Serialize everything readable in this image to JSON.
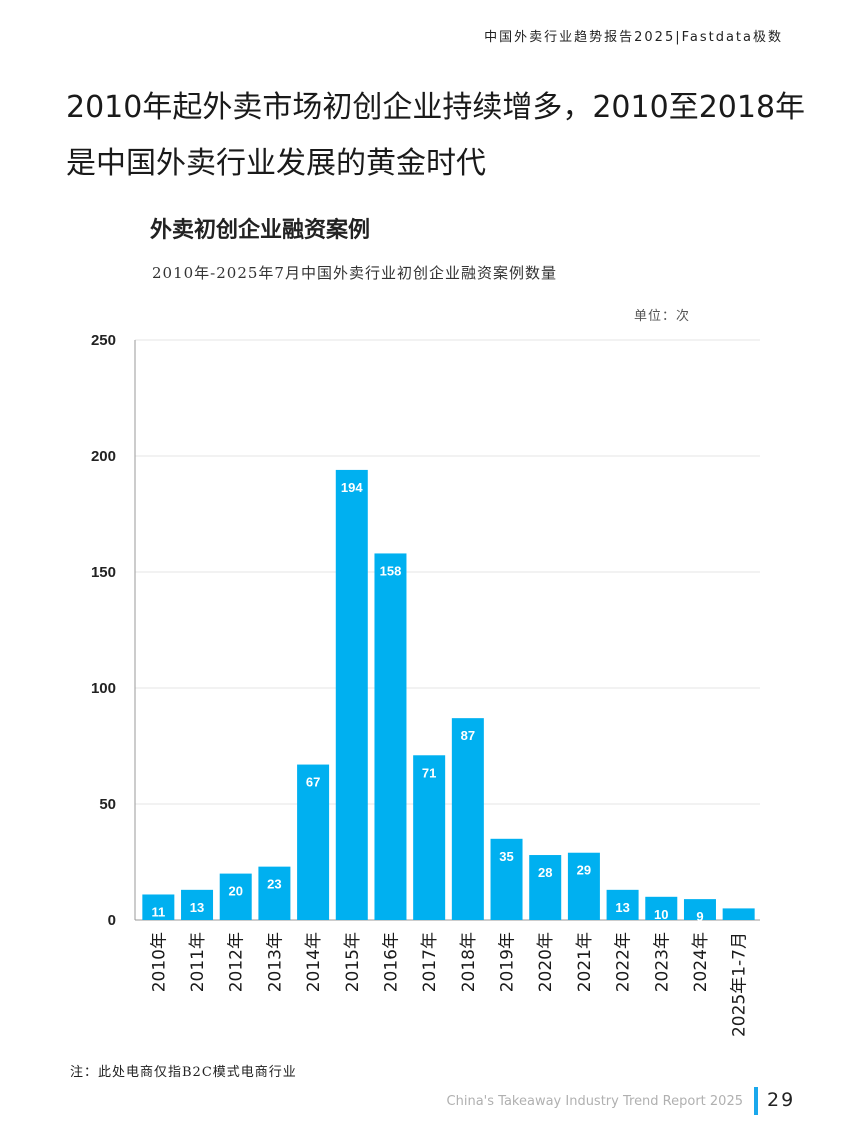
{
  "header": {
    "report_line": "中国外卖行业趋势报告2025|Fastdata极数"
  },
  "page": {
    "title": "2010年起外卖市场初创企业持续增多，2010至2018年是中国外卖行业发展的黄金时代",
    "footnote": "注：此处电商仅指B2C模式电商行业",
    "footer_en": "China's Takeaway Industry Trend Report 2025",
    "page_number": "29"
  },
  "colors": {
    "bar": "#00b0f0",
    "accent": "#1aa8ec",
    "grid": "#e6e6e6"
  },
  "chart_data": {
    "type": "bar",
    "title": "外卖初创企业融资案例",
    "subtitle": "2010年-2025年7月中国外卖行业初创企业融资案例数量",
    "unit": "单位：次",
    "categories": [
      "2010年",
      "2011年",
      "2012年",
      "2013年",
      "2014年",
      "2015年",
      "2016年",
      "2017年",
      "2018年",
      "2019年",
      "2020年",
      "2021年",
      "2022年",
      "2023年",
      "2024年",
      "2025年1-7月"
    ],
    "values": [
      11,
      13,
      20,
      23,
      67,
      194,
      158,
      71,
      87,
      35,
      28,
      29,
      13,
      10,
      9,
      5
    ],
    "data_labels": [
      "11",
      "13",
      "20",
      "23",
      "67",
      "194",
      "158",
      "71",
      "87",
      "35",
      "28",
      "29",
      "13",
      "10",
      "9",
      ""
    ],
    "ylim": [
      0,
      250
    ],
    "yticks": [
      0,
      50,
      100,
      150,
      200,
      250
    ],
    "grid": true,
    "legend": "none"
  }
}
